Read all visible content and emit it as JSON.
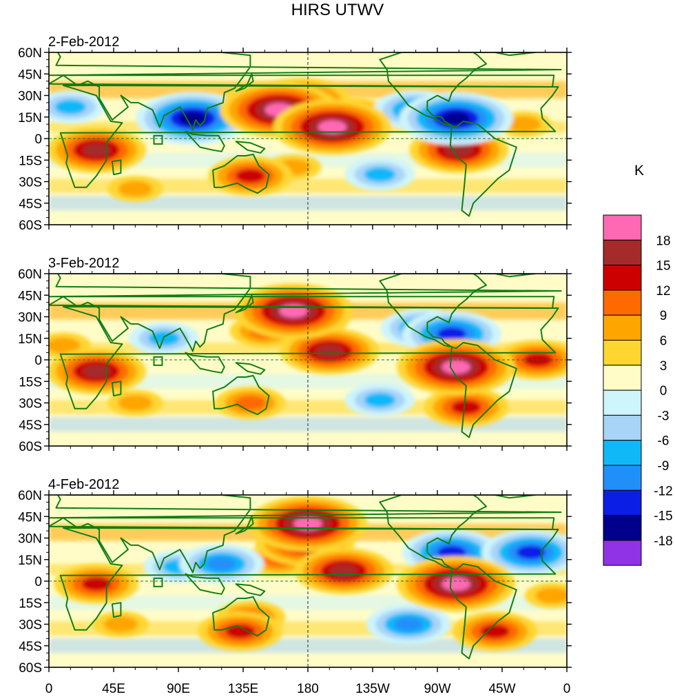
{
  "figure": {
    "title": "HIRS UTWV",
    "units": "K"
  },
  "panels": [
    {
      "date": "2-Feb-2012",
      "features": [
        {
          "lon": 175,
          "lat": 26,
          "value": 15
        },
        {
          "lon": 160,
          "lat": 20,
          "value": 19
        },
        {
          "lon": 197,
          "lat": 8,
          "value": 19
        },
        {
          "lon": 150,
          "lat": 25,
          "value": 12
        },
        {
          "lon": 210,
          "lat": 15,
          "value": 12
        },
        {
          "lon": 100,
          "lat": 14,
          "value": -18
        },
        {
          "lon": 255,
          "lat": 20,
          "value": -12
        },
        {
          "lon": 283,
          "lat": 14,
          "value": -18
        },
        {
          "lon": 33,
          "lat": -8,
          "value": 15
        },
        {
          "lon": 285,
          "lat": -8,
          "value": 15
        },
        {
          "lon": 140,
          "lat": -26,
          "value": 12
        },
        {
          "lon": 170,
          "lat": -20,
          "value": 6
        },
        {
          "lon": 230,
          "lat": -25,
          "value": -9
        },
        {
          "lon": 15,
          "lat": 22,
          "value": -9
        },
        {
          "lon": 330,
          "lat": 10,
          "value": 6
        },
        {
          "lon": 60,
          "lat": -35,
          "value": 6
        }
      ]
    },
    {
      "date": "3-Feb-2012",
      "features": [
        {
          "lon": 175,
          "lat": 30,
          "value": 15
        },
        {
          "lon": 170,
          "lat": 34,
          "value": 19
        },
        {
          "lon": 195,
          "lat": 6,
          "value": 15
        },
        {
          "lon": 150,
          "lat": 20,
          "value": 9
        },
        {
          "lon": 260,
          "lat": 22,
          "value": -12
        },
        {
          "lon": 280,
          "lat": 18,
          "value": -15
        },
        {
          "lon": 80,
          "lat": 15,
          "value": -9
        },
        {
          "lon": 33,
          "lat": -8,
          "value": 15
        },
        {
          "lon": 283,
          "lat": -5,
          "value": 19
        },
        {
          "lon": 340,
          "lat": 0,
          "value": 12
        },
        {
          "lon": 290,
          "lat": -33,
          "value": 12
        },
        {
          "lon": 140,
          "lat": -30,
          "value": 9
        },
        {
          "lon": 60,
          "lat": -30,
          "value": 6
        },
        {
          "lon": 10,
          "lat": 10,
          "value": 6
        },
        {
          "lon": 230,
          "lat": -28,
          "value": -9
        }
      ]
    },
    {
      "date": "4-Feb-2012",
      "features": [
        {
          "lon": 178,
          "lat": 27,
          "value": 15
        },
        {
          "lon": 180,
          "lat": 40,
          "value": 19
        },
        {
          "lon": 205,
          "lat": 7,
          "value": 15
        },
        {
          "lon": 160,
          "lat": 15,
          "value": 9
        },
        {
          "lon": 120,
          "lat": 12,
          "value": -12
        },
        {
          "lon": 90,
          "lat": 10,
          "value": -9
        },
        {
          "lon": 280,
          "lat": 20,
          "value": -15
        },
        {
          "lon": 335,
          "lat": 20,
          "value": -15
        },
        {
          "lon": 283,
          "lat": -2,
          "value": 19
        },
        {
          "lon": 33,
          "lat": -2,
          "value": 12
        },
        {
          "lon": 140,
          "lat": -25,
          "value": 9
        },
        {
          "lon": 133,
          "lat": -35,
          "value": 12
        },
        {
          "lon": 310,
          "lat": -35,
          "value": 12
        },
        {
          "lon": 250,
          "lat": -30,
          "value": -12
        },
        {
          "lon": 50,
          "lat": -30,
          "value": 6
        },
        {
          "lon": 350,
          "lat": -10,
          "value": 6
        }
      ]
    }
  ],
  "axes": {
    "lat_ticks": [
      {
        "label": "60N",
        "lat": 60
      },
      {
        "label": "45N",
        "lat": 45
      },
      {
        "label": "30N",
        "lat": 30
      },
      {
        "label": "15N",
        "lat": 15
      },
      {
        "label": "0",
        "lat": 0
      },
      {
        "label": "15S",
        "lat": -15
      },
      {
        "label": "30S",
        "lat": -30
      },
      {
        "label": "45S",
        "lat": -45
      },
      {
        "label": "60S",
        "lat": -60
      }
    ],
    "lon_ticks": [
      {
        "label": "0",
        "lon": 0
      },
      {
        "label": "45E",
        "lon": 45
      },
      {
        "label": "90E",
        "lon": 90
      },
      {
        "label": "135E",
        "lon": 135
      },
      {
        "label": "180",
        "lon": 180
      },
      {
        "label": "135W",
        "lon": 225
      },
      {
        "label": "90W",
        "lon": 270
      },
      {
        "label": "45W",
        "lon": 315
      },
      {
        "label": "0",
        "lon": 360
      }
    ]
  },
  "colorbar": {
    "levels": [
      "18",
      "15",
      "12",
      "9",
      "6",
      "3",
      "0",
      "-3",
      "-6",
      "-9",
      "-12",
      "-15",
      "-18"
    ],
    "colors": [
      "#ff69b4",
      "#a52a2a",
      "#cc0000",
      "#ff6a00",
      "#ffa500",
      "#ffd630",
      "#fffcc8",
      "#cef4fc",
      "#a8d4f8",
      "#10b8f8",
      "#2090f8",
      "#0a1ee6",
      "#00008c",
      "#9032e6"
    ]
  }
}
